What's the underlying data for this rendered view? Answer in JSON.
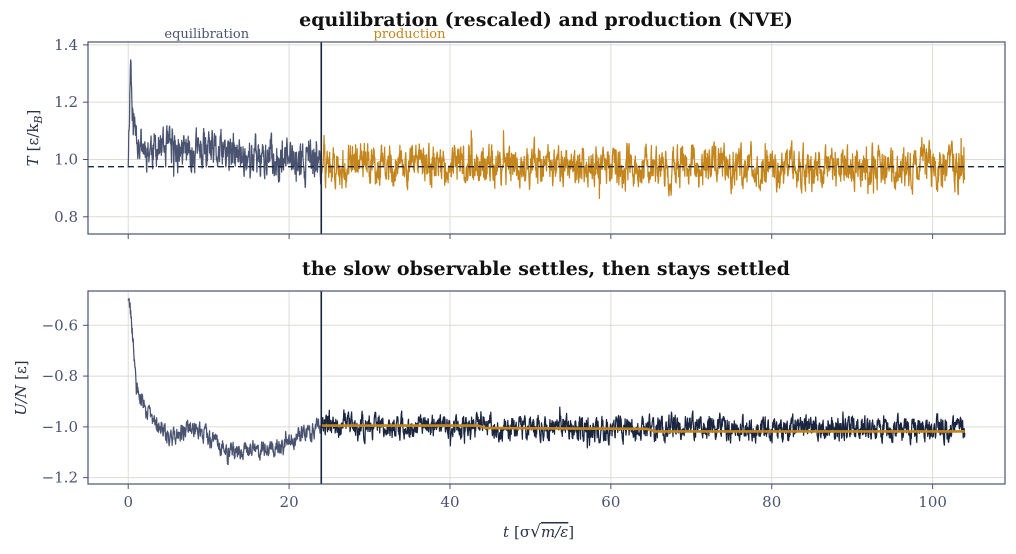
{
  "colors": {
    "equilibration": "#4a5470",
    "production": "#c4861c",
    "potential": "#1a2540",
    "running_mean": "#c4861c",
    "divider": "#1a2540",
    "reference": "#1a2540",
    "grid": "#dedbd4",
    "frame": "#4a5270"
  },
  "chart_data": [
    {
      "type": "line",
      "title": "equilibration (rescaled) and production (NVE)",
      "xlabel": "",
      "ylabel": "T [ε/k_B]",
      "ylabel_main": "T",
      "ylabel_unit": "[ε/k",
      "ylabel_sub": "B",
      "ylabel_close": "]",
      "xlim": [
        -5,
        109
      ],
      "ylim": [
        0.74,
        1.41
      ],
      "xticks": [
        0,
        20,
        40,
        60,
        80,
        100
      ],
      "xtick_labels": [
        "",
        "",
        "",
        "",
        "",
        ""
      ],
      "yticks": [
        0.8,
        1.0,
        1.2,
        1.4
      ],
      "ytick_labels": [
        "0.8",
        "1.0",
        "1.2",
        "1.4"
      ],
      "grid": true,
      "divider_x": 24,
      "reference_y": 0.975,
      "annotations": [
        {
          "text": "equilibration",
          "x": 4.5,
          "color_key": "equilibration"
        },
        {
          "text": "production",
          "x": 30.5,
          "color_key": "production"
        }
      ],
      "series": [
        {
          "key": "equilibration",
          "x_range": [
            0,
            24
          ],
          "noise_amplitude": 0.06,
          "envelope": [
            [
              0,
              1.0
            ],
            [
              0.3,
              1.37
            ],
            [
              0.6,
              1.12
            ],
            [
              2,
              1.04
            ],
            [
              24,
              0.99
            ]
          ]
        },
        {
          "key": "production",
          "x_range": [
            24,
            104
          ],
          "noise_amplitude": 0.06,
          "envelope": [
            [
              24,
              0.98
            ],
            [
              104,
              0.97
            ]
          ]
        }
      ]
    },
    {
      "type": "line",
      "title": "the slow observable settles, then stays settled",
      "xlabel": "t [σ√(m/ε)]",
      "xlabel_main": "t",
      "xlabel_unit_open": "[σ",
      "xlabel_unit_root": "m/ε",
      "xlabel_unit_close": "]",
      "ylabel": "U/N [ε]",
      "ylabel_main": "U/N",
      "ylabel_unit": "[ε]",
      "xlim": [
        -5,
        109
      ],
      "ylim": [
        -1.225,
        -0.465
      ],
      "xticks": [
        0,
        20,
        40,
        60,
        80,
        100
      ],
      "xtick_labels": [
        "0",
        "20",
        "40",
        "60",
        "80",
        "100"
      ],
      "yticks": [
        -0.6,
        -0.8,
        -1.0,
        -1.2
      ],
      "ytick_labels": [
        "−0.6",
        "−0.8",
        "−1.0",
        "−1.2"
      ],
      "grid": true,
      "divider_x": 24,
      "series": [
        {
          "key": "equilibration",
          "x_range": [
            0,
            24
          ],
          "noise_amplitude": 0.03,
          "envelope": [
            [
              0,
              -0.49
            ],
            [
              0.5,
              -0.62
            ],
            [
              1,
              -0.85
            ],
            [
              2.5,
              -0.95
            ],
            [
              5,
              -1.04
            ],
            [
              8,
              -1.0
            ],
            [
              13,
              -1.1
            ],
            [
              18,
              -1.08
            ],
            [
              24,
              -1.0
            ]
          ]
        },
        {
          "key": "potential",
          "x_range": [
            24,
            104
          ],
          "noise_amplitude": 0.04,
          "envelope": [
            [
              24,
              -1.0
            ],
            [
              104,
              -1.01
            ]
          ]
        },
        {
          "key": "running_mean",
          "x_range": [
            24,
            104
          ],
          "noise_amplitude": 0,
          "envelope": [
            [
              24,
              -0.995
            ],
            [
              43.5,
              -0.995
            ],
            [
              44.5,
              -1.005
            ],
            [
              64.5,
              -1.008
            ],
            [
              65.5,
              -1.018
            ],
            [
              104,
              -1.018
            ]
          ]
        }
      ]
    }
  ]
}
